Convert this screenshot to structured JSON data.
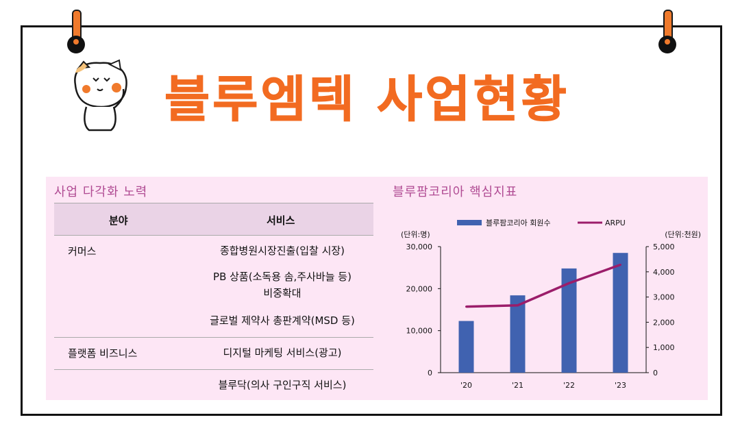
{
  "page": {
    "title": "블루엠텍 사업현황",
    "colors": {
      "accent": "#f26b21",
      "panel_bg": "#fde6f5",
      "header_bg": "#ead3e6",
      "section_title": "#b04b93",
      "bar": "#4062b0",
      "line": "#9b1d6a"
    }
  },
  "left": {
    "section_title": "사업 다각화 노력",
    "headers": {
      "field": "분야",
      "service": "서비스"
    },
    "rows": [
      {
        "field": "커머스",
        "services": [
          "종합병원시장진출(입찰 시장)",
          "PB 상품(소독용 솜,주사바늘 등)",
          "비중확대",
          "글로벌 제약사 총판계약(MSD 등)"
        ]
      },
      {
        "field": "플랫폼 비즈니스",
        "services": [
          "디지털 마케팅 서비스(광고)",
          "블루닥(의사 구인구직 서비스)"
        ]
      }
    ]
  },
  "right": {
    "section_title": "블루팜코리아 핵심지표"
  },
  "chart_data": {
    "type": "bar",
    "categories": [
      "'20",
      "'21",
      "'22",
      "'23"
    ],
    "series": [
      {
        "name": "블루팜코리아 회원수",
        "type": "bar",
        "axis": "left",
        "values": [
          12300,
          18400,
          24800,
          28500
        ]
      },
      {
        "name": "ARPU",
        "type": "line",
        "axis": "right",
        "values": [
          2620,
          2670,
          3550,
          4280
        ]
      }
    ],
    "left_axis": {
      "unit_label": "(단위:명)",
      "ylim": [
        0,
        30000
      ],
      "ticks": [
        "0",
        "10,000",
        "20,000",
        "30,000"
      ]
    },
    "right_axis": {
      "unit_label": "(단위:천원)",
      "ylim": [
        0,
        5000
      ],
      "ticks": [
        "0",
        "1,000",
        "2,000",
        "3,000",
        "4,000",
        "5,000"
      ]
    },
    "legend": "top",
    "grid": false
  }
}
